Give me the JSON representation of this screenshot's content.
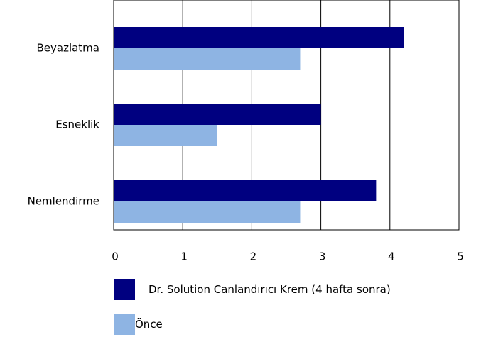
{
  "chart_data": {
    "type": "bar",
    "orientation": "horizontal",
    "categories": [
      "Beyazlatma",
      "Esneklik",
      "Nemlendirme"
    ],
    "series": [
      {
        "name": "Dr. Solution Canlandırıcı Krem (4 hafta sonra)",
        "values": [
          4.2,
          3.0,
          3.8
        ],
        "color": "#000080"
      },
      {
        "name": "Önce",
        "values": [
          2.7,
          1.5,
          2.7
        ],
        "color": "#8eb4e3"
      }
    ],
    "xlim": [
      0,
      5
    ],
    "xticks": [
      "0",
      "1",
      "2",
      "3",
      "4",
      "5"
    ],
    "title": "",
    "xlabel": "",
    "ylabel": "",
    "grid": "vertical",
    "legend_position": "bottom"
  }
}
